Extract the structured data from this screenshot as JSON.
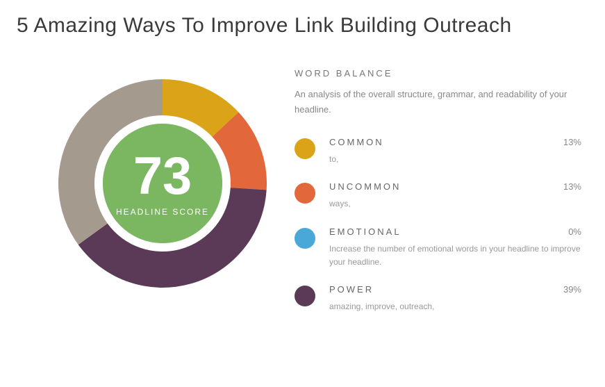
{
  "headline": "5 Amazing Ways To Improve Link Building Outreach",
  "score": {
    "value": "73",
    "label": "HEADLINE SCORE",
    "center_bg": "#7bb661"
  },
  "donut": {
    "size": 300,
    "ring_thickness": 52,
    "inner_gap": 12,
    "segments": [
      {
        "fraction": 0.13,
        "color": "#dba317"
      },
      {
        "fraction": 0.13,
        "color": "#e2683c"
      },
      {
        "fraction": 0.0,
        "color": "#4aa8d8"
      },
      {
        "fraction": 0.39,
        "color": "#5a3a56"
      },
      {
        "fraction": 0.35,
        "color": "#a49a8d"
      }
    ]
  },
  "word_balance": {
    "title": "WORD BALANCE",
    "description": "An analysis of the overall structure, grammar, and readability of your headline.",
    "categories": [
      {
        "name": "COMMON",
        "pct": "13%",
        "color": "#dba317",
        "detail": "to,"
      },
      {
        "name": "UNCOMMON",
        "pct": "13%",
        "color": "#e2683c",
        "detail": "ways,"
      },
      {
        "name": "EMOTIONAL",
        "pct": "0%",
        "color": "#4aa8d8",
        "detail": "Increase the number of emotional words in your headline to improve your headline."
      },
      {
        "name": "POWER",
        "pct": "39%",
        "color": "#5a3a56",
        "detail": "amazing, improve, outreach,"
      }
    ]
  }
}
